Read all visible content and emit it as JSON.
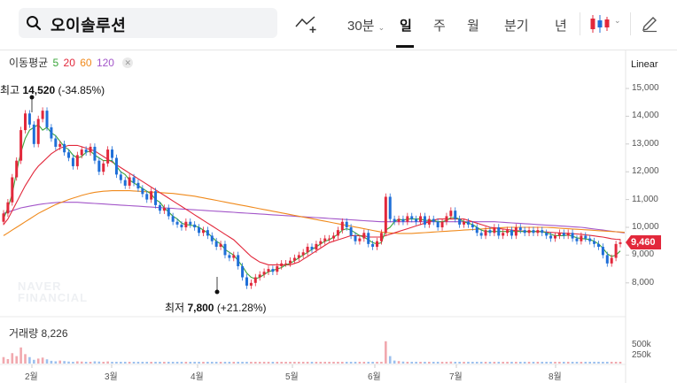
{
  "search": {
    "query": "오이솔루션"
  },
  "toolbar": {
    "interval_dropdown": "30분",
    "tabs": [
      "일",
      "주",
      "월",
      "분기",
      "년"
    ],
    "active_tab": "일"
  },
  "indicators": {
    "label": "이동평균",
    "periods": [
      {
        "value": "5",
        "color": "#3aa53a"
      },
      {
        "value": "20",
        "color": "#e2283b"
      },
      {
        "value": "60",
        "color": "#f08a1c"
      },
      {
        "value": "120",
        "color": "#a356c9"
      }
    ]
  },
  "scale_type": "Linear",
  "y_axis_labels": [
    "15,000",
    "14,000",
    "13,000",
    "12,000",
    "11,000",
    "10,000",
    "9,000",
    "8,000"
  ],
  "volume_axis_labels": [
    "500k",
    "250k"
  ],
  "current_price": "9,460",
  "annotations": {
    "high": {
      "prefix": "최고",
      "value": "14,520",
      "change": "(-34.85%)"
    },
    "low": {
      "prefix": "최저",
      "value": "7,800",
      "change": "(+21.28%)"
    }
  },
  "volume": {
    "label": "거래량",
    "value": "8,226"
  },
  "x_axis_labels": [
    "2월",
    "3월",
    "4월",
    "5월",
    "6월",
    "7월",
    "8월"
  ],
  "watermark": {
    "line1": "NAVER",
    "line2": "FINANCIAL"
  },
  "colors": {
    "up": "#e2283b",
    "down": "#1f6fd8",
    "vol_up": "#f1a8ae",
    "vol_down": "#9cc0ee"
  },
  "chart_data": {
    "type": "candlestick",
    "y_range": [
      7500,
      15500
    ],
    "closes": [
      10500,
      10900,
      11800,
      12400,
      13500,
      14100,
      13700,
      13000,
      13900,
      14200,
      13600,
      13200,
      12900,
      13000,
      12700,
      12500,
      12200,
      12600,
      12800,
      12700,
      12900,
      12400,
      12000,
      12300,
      12800,
      12500,
      11900,
      11700,
      11500,
      11800,
      11600,
      11400,
      11200,
      11000,
      11300,
      10800,
      10600,
      10700,
      10400,
      10200,
      10100,
      10000,
      10200,
      10100,
      10000,
      9800,
      9900,
      9700,
      9500,
      9300,
      9400,
      9000,
      8900,
      9000,
      8600,
      8200,
      7900,
      8000,
      8200,
      8300,
      8400,
      8500,
      8400,
      8600,
      8700,
      8700,
      8800,
      8900,
      9000,
      9100,
      9300,
      9200,
      9400,
      9500,
      9600,
      9600,
      9700,
      9900,
      10200,
      10000,
      9700,
      9500,
      9600,
      9800,
      9400,
      9300,
      9500,
      9800,
      11100,
      10300,
      10200,
      10300,
      10200,
      10400,
      10300,
      10200,
      10400,
      10100,
      10300,
      10200,
      10000,
      10200,
      10400,
      10600,
      10300,
      10100,
      10200,
      10100,
      10000,
      9800,
      9700,
      9900,
      9800,
      10000,
      9700,
      9800,
      9900,
      9700,
      10000,
      9900,
      9800,
      9900,
      9800,
      9900,
      9800,
      9700,
      9600,
      9700,
      9800,
      9700,
      9800,
      9600,
      9500,
      9700,
      9600,
      9500,
      9400,
      9300,
      9000,
      8700,
      8900,
      9400,
      9460
    ],
    "ma5": [
      10300,
      10700,
      11200,
      12000,
      12700,
      13200,
      13500,
      13600,
      13700,
      13500,
      13600,
      13400,
      13300,
      13100,
      12900,
      12800,
      12600,
      12500,
      12550,
      12700,
      12750,
      12600,
      12500,
      12400,
      12400,
      12400,
      12200,
      12000,
      11900,
      11700,
      11600,
      11500,
      11400,
      11300,
      11200,
      11000,
      10900,
      10700,
      10550,
      10400,
      10300,
      10150,
      10100,
      10080,
      10050,
      10000,
      9900,
      9800,
      9650,
      9500,
      9400,
      9200,
      9100,
      9000,
      8800,
      8600,
      8350,
      8200,
      8150,
      8200,
      8300,
      8400,
      8450,
      8500,
      8550,
      8650,
      8700,
      8800,
      8900,
      9000,
      9100,
      9200,
      9300,
      9400,
      9500,
      9550,
      9650,
      9750,
      9900,
      9950,
      9900,
      9800,
      9700,
      9650,
      9550,
      9450,
      9400,
      9450,
      9900,
      10000,
      10200,
      10300,
      10250,
      10300,
      10300,
      10300,
      10300,
      10250,
      10250,
      10250,
      10200,
      10200,
      10250,
      10350,
      10350,
      10300,
      10200,
      10150,
      10100,
      10000,
      9900,
      9850,
      9850,
      9850,
      9850,
      9850,
      9850,
      9850,
      9850,
      9850,
      9850,
      9850,
      9850,
      9850,
      9850,
      9800,
      9750,
      9700,
      9700,
      9700,
      9720,
      9680,
      9620,
      9600,
      9580,
      9560,
      9500,
      9400,
      9250,
      9050,
      8950,
      9000,
      9150
    ],
    "ma20": [
      10100,
      10300,
      10600,
      10900,
      11200,
      11500,
      11750,
      12000,
      12200,
      12350,
      12500,
      12650,
      12750,
      12850,
      12900,
      12950,
      12950,
      12950,
      12900,
      12850,
      12800,
      12750,
      12650,
      12550,
      12450,
      12350,
      12250,
      12150,
      12050,
      11950,
      11850,
      11750,
      11650,
      11550,
      11450,
      11350,
      11250,
      11150,
      11050,
      10950,
      10850,
      10750,
      10650,
      10550,
      10450,
      10350,
      10250,
      10150,
      10050,
      9950,
      9850,
      9750,
      9650,
      9550,
      9400,
      9250,
      9100,
      8950,
      8850,
      8750,
      8700,
      8650,
      8650,
      8650,
      8650,
      8650,
      8650,
      8700,
      8750,
      8850,
      8950,
      9050,
      9150,
      9250,
      9350,
      9450,
      9500,
      9550,
      9600,
      9650,
      9700,
      9700,
      9700,
      9700,
      9650,
      9650,
      9650,
      9650,
      9700,
      9750,
      9800,
      9850,
      9900,
      9950,
      10000,
      10050,
      10100,
      10150,
      10200,
      10250,
      10300,
      10300,
      10300,
      10300,
      10300,
      10300,
      10300,
      10250,
      10200,
      10150,
      10100,
      10050,
      10000,
      9980,
      9960,
      9940,
      9920,
      9900,
      9880,
      9870,
      9860,
      9850,
      9850,
      9850,
      9840,
      9830,
      9820,
      9810,
      9800,
      9790,
      9780,
      9770,
      9760,
      9750,
      9730,
      9710,
      9690,
      9670,
      9650,
      9620,
      9590,
      9570,
      9560
    ],
    "ma60": [
      9700,
      9800,
      9900,
      10000,
      10100,
      10200,
      10300,
      10400,
      10500,
      10580,
      10660,
      10740,
      10820,
      10880,
      10940,
      11000,
      11050,
      11100,
      11150,
      11190,
      11230,
      11260,
      11280,
      11300,
      11310,
      11320,
      11320,
      11320,
      11320,
      11320,
      11310,
      11300,
      11290,
      11280,
      11270,
      11260,
      11250,
      11240,
      11230,
      11220,
      11200,
      11180,
      11160,
      11140,
      11120,
      11090,
      11060,
      11030,
      11000,
      10970,
      10940,
      10910,
      10880,
      10850,
      10820,
      10790,
      10760,
      10730,
      10700,
      10670,
      10640,
      10610,
      10580,
      10550,
      10520,
      10490,
      10460,
      10430,
      10400,
      10370,
      10340,
      10310,
      10280,
      10250,
      10220,
      10190,
      10160,
      10130,
      10100,
      10070,
      10040,
      10010,
      9980,
      9950,
      9920,
      9890,
      9860,
      9830,
      9810,
      9800,
      9790,
      9780,
      9780,
      9780,
      9780,
      9790,
      9800,
      9810,
      9820,
      9830,
      9840,
      9850,
      9860,
      9870,
      9880,
      9890,
      9900,
      9910,
      9920,
      9930,
      9940,
      9950,
      9960,
      9970,
      9980,
      9990,
      10000,
      10000,
      10000,
      10000,
      10000,
      10000,
      10000,
      10000,
      10000,
      10000,
      9990,
      9980,
      9970,
      9960,
      9950,
      9940,
      9930,
      9920,
      9910,
      9900,
      9890,
      9880,
      9870,
      9860,
      9850,
      9840,
      9830,
      9820
    ],
    "ma120": [
      10500,
      10550,
      10600,
      10650,
      10700,
      10730,
      10760,
      10790,
      10820,
      10840,
      10860,
      10880,
      10890,
      10900,
      10900,
      10900,
      10900,
      10900,
      10890,
      10880,
      10870,
      10860,
      10850,
      10840,
      10830,
      10820,
      10810,
      10800,
      10790,
      10780,
      10770,
      10760,
      10750,
      10740,
      10730,
      10720,
      10710,
      10700,
      10690,
      10680,
      10670,
      10660,
      10650,
      10640,
      10630,
      10620,
      10610,
      10600,
      10590,
      10580,
      10570,
      10560,
      10550,
      10540,
      10530,
      10520,
      10510,
      10500,
      10490,
      10480,
      10470,
      10460,
      10450,
      10440,
      10430,
      10420,
      10410,
      10400,
      10390,
      10380,
      10370,
      10360,
      10350,
      10340,
      10330,
      10320,
      10310,
      10300,
      10290,
      10280,
      10270,
      10260,
      10250,
      10240,
      10230,
      10220,
      10210,
      10200,
      10200,
      10200,
      10200,
      10200,
      10200,
      10200,
      10200,
      10200,
      10200,
      10200,
      10200,
      10200,
      10200,
      10200,
      10200,
      10200,
      10200,
      10200,
      10200,
      10200,
      10200,
      10200,
      10200,
      10200,
      10200,
      10200,
      10190,
      10180,
      10170,
      10160,
      10150,
      10140,
      10130,
      10120,
      10110,
      10100,
      10090,
      10080,
      10070,
      10060,
      10050,
      10040,
      10030,
      10020,
      10010,
      10000,
      9980,
      9960,
      9940,
      9920,
      9900,
      9880,
      9860,
      9840,
      9820,
      9800
    ],
    "volumes": [
      260,
      180,
      420,
      300,
      650,
      380,
      260,
      150,
      200,
      240,
      170,
      110,
      90,
      120,
      100,
      80,
      70,
      90,
      80,
      70,
      60,
      90,
      80,
      70,
      85,
      70,
      60,
      60,
      55,
      70,
      50,
      45,
      40,
      45,
      60,
      55,
      40,
      45,
      40,
      35,
      50,
      40,
      35,
      35,
      30,
      40,
      35,
      40,
      45,
      60,
      40,
      35,
      30,
      35,
      45,
      60,
      40,
      35,
      30,
      35,
      30,
      35,
      30,
      30,
      30,
      35,
      30,
      30,
      30,
      35,
      40,
      35,
      35,
      40,
      50,
      45,
      35,
      30,
      40,
      45,
      35,
      30,
      30,
      35,
      30,
      30,
      35,
      40,
      900,
      300,
      120,
      100,
      80,
      70,
      60,
      65,
      55,
      50,
      60,
      55,
      45,
      50,
      60,
      80,
      60,
      45,
      40,
      40,
      35,
      40,
      35,
      35,
      40,
      35,
      35,
      30,
      35,
      30,
      35,
      30,
      30,
      30,
      30,
      30,
      30,
      30,
      30,
      30,
      30,
      30,
      30,
      30,
      30,
      30,
      30,
      30,
      30,
      40,
      60,
      60,
      50,
      45,
      40
    ]
  }
}
